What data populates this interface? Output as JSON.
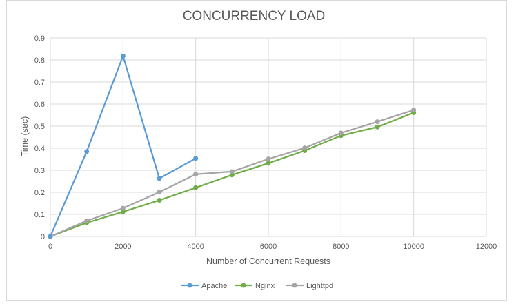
{
  "chart_data": {
    "type": "line",
    "title": "CONCURRENCY LOAD",
    "xlabel": "Number of Concurrent Requests",
    "ylabel": "Time (sec)",
    "xlim": [
      0,
      12000
    ],
    "ylim": [
      0,
      0.9
    ],
    "x_ticks": [
      0,
      2000,
      4000,
      6000,
      8000,
      10000,
      12000
    ],
    "y_ticks": [
      0,
      0.1,
      0.2,
      0.3,
      0.4,
      0.5,
      0.6,
      0.7,
      0.8,
      0.9
    ],
    "x_tick_labels": [
      "0",
      "2000",
      "4000",
      "6000",
      "8000",
      "10000",
      "12000"
    ],
    "y_tick_labels": [
      "0",
      "0.1",
      "0.2",
      "0.3",
      "0.4",
      "0.5",
      "0.6",
      "0.7",
      "0.8",
      "0.9"
    ],
    "grid": true,
    "legend_position": "bottom",
    "series": [
      {
        "name": "Apache",
        "color": "#5b9bd5",
        "x": [
          0,
          1000,
          2000,
          3000,
          4000
        ],
        "y": [
          0,
          0.385,
          0.818,
          0.263,
          0.354
        ]
      },
      {
        "name": "Nginx",
        "color": "#70ad47",
        "x": [
          0,
          1000,
          2000,
          3000,
          4000,
          5000,
          6000,
          7000,
          8000,
          9000,
          10000
        ],
        "y": [
          0,
          0.062,
          0.112,
          0.164,
          0.221,
          0.279,
          0.332,
          0.389,
          0.457,
          0.496,
          0.561
        ]
      },
      {
        "name": "Lighttpd",
        "color": "#a5a5a5",
        "x": [
          0,
          1000,
          2000,
          3000,
          4000,
          5000,
          6000,
          7000,
          8000,
          9000,
          10000
        ],
        "y": [
          0,
          0.071,
          0.128,
          0.201,
          0.282,
          0.294,
          0.351,
          0.401,
          0.469,
          0.52,
          0.573
        ]
      }
    ]
  },
  "colors": {
    "gridline": "#d9d9d9",
    "text": "#595959"
  }
}
